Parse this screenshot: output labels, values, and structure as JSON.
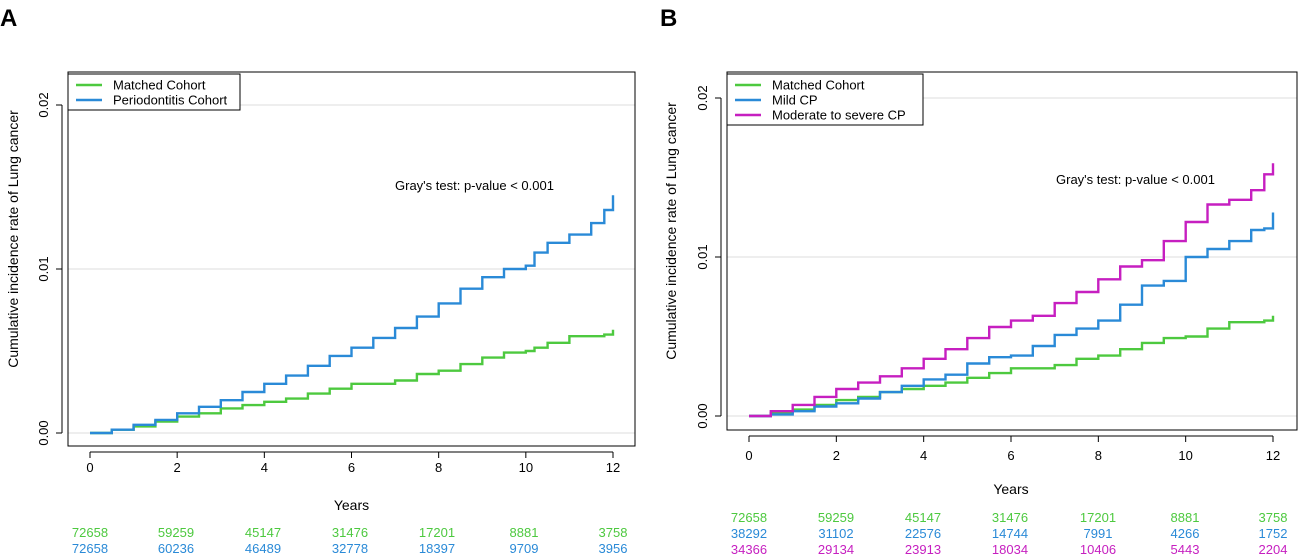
{
  "chart_data": [
    {
      "panel_label": "A",
      "type": "line",
      "title": "",
      "xlabel": "Years",
      "ylabel": "Cumulative incidence rate of Lung cancer",
      "xlim": [
        0,
        12
      ],
      "ylim": [
        0,
        0.02
      ],
      "x_ticks": [
        0,
        2,
        4,
        6,
        8,
        10,
        12
      ],
      "y_ticks": [
        "0.00",
        "0.01",
        "0.02"
      ],
      "y_tick_values": [
        0,
        0.01,
        0.02
      ],
      "grid": "horizontal",
      "legend_position": "top-left",
      "annotation": "Gray's test: p-value < 0.001",
      "x": [
        0,
        0.5,
        1,
        1.5,
        2,
        2.5,
        3,
        3.5,
        4,
        4.5,
        5,
        5.5,
        6,
        6.5,
        7,
        7.5,
        8,
        8.5,
        9,
        9.5,
        10,
        10.2,
        10.5,
        11,
        11.5,
        11.8,
        12
      ],
      "series": [
        {
          "name": "Matched Cohort",
          "color": "#4dc93f",
          "values": [
            0,
            0.0002,
            0.0004,
            0.0007,
            0.001,
            0.0012,
            0.0015,
            0.0017,
            0.0019,
            0.0021,
            0.0024,
            0.0027,
            0.003,
            0.003,
            0.0032,
            0.0036,
            0.0038,
            0.0042,
            0.0046,
            0.0049,
            0.005,
            0.0052,
            0.0055,
            0.0059,
            0.0059,
            0.006,
            0.0063
          ]
        },
        {
          "name": "Periodontitis Cohort",
          "color": "#2a8ad7",
          "values": [
            0,
            0.0002,
            0.0005,
            0.0008,
            0.0012,
            0.0016,
            0.002,
            0.0025,
            0.003,
            0.0035,
            0.0041,
            0.0047,
            0.0052,
            0.0058,
            0.0064,
            0.0071,
            0.0079,
            0.0088,
            0.0095,
            0.01,
            0.0102,
            0.011,
            0.0116,
            0.0121,
            0.0128,
            0.0136,
            0.0145
          ]
        }
      ],
      "risk_table": [
        {
          "name": "Matched Cohort",
          "color": "#4dc93f",
          "counts": [
            "72658",
            "59259",
            "45147",
            "31476",
            "17201",
            "8881",
            "3758"
          ]
        },
        {
          "name": "Periodontitis Cohort",
          "color": "#2a8ad7",
          "counts": [
            "72658",
            "60236",
            "46489",
            "32778",
            "18397",
            "9709",
            "3956"
          ]
        }
      ]
    },
    {
      "panel_label": "B",
      "type": "line",
      "title": "",
      "xlabel": "Years",
      "ylabel": "Cumulative incidence rate of Lung cancer",
      "xlim": [
        0,
        12
      ],
      "ylim": [
        0,
        0.02
      ],
      "x_ticks": [
        0,
        2,
        4,
        6,
        8,
        10,
        12
      ],
      "y_ticks": [
        "0.00",
        "0.01",
        "0.02"
      ],
      "y_tick_values": [
        0,
        0.01,
        0.02
      ],
      "grid": "horizontal",
      "legend_position": "top-left",
      "annotation": "Gray's test: p-value < 0.001",
      "x": [
        0,
        0.5,
        1,
        1.5,
        2,
        2.5,
        3,
        3.5,
        4,
        4.5,
        5,
        5.5,
        6,
        6.5,
        7,
        7.5,
        8,
        8.5,
        9,
        9.5,
        10,
        10.5,
        11,
        11.5,
        11.8,
        12
      ],
      "series": [
        {
          "name": "Matched Cohort",
          "color": "#4dc93f",
          "values": [
            0,
            0.0002,
            0.0004,
            0.0007,
            0.001,
            0.0012,
            0.0015,
            0.0017,
            0.0019,
            0.0021,
            0.0024,
            0.0027,
            0.003,
            0.003,
            0.0032,
            0.0036,
            0.0038,
            0.0042,
            0.0046,
            0.0049,
            0.005,
            0.0055,
            0.0059,
            0.0059,
            0.006,
            0.0063
          ]
        },
        {
          "name": "Mild CP",
          "color": "#2a8ad7",
          "values": [
            0,
            0.0001,
            0.0003,
            0.0006,
            0.0008,
            0.0011,
            0.0015,
            0.0019,
            0.0023,
            0.0026,
            0.0033,
            0.0037,
            0.0038,
            0.0044,
            0.0051,
            0.0055,
            0.006,
            0.007,
            0.0082,
            0.0085,
            0.01,
            0.0105,
            0.011,
            0.0117,
            0.0118,
            0.0128
          ]
        },
        {
          "name": "Moderate to severe CP",
          "color": "#c61fc0",
          "values": [
            0,
            0.0003,
            0.0007,
            0.0012,
            0.0017,
            0.0021,
            0.0025,
            0.003,
            0.0036,
            0.0042,
            0.0049,
            0.0056,
            0.006,
            0.0063,
            0.0071,
            0.0078,
            0.0086,
            0.0094,
            0.0098,
            0.011,
            0.0122,
            0.0133,
            0.0136,
            0.0142,
            0.0152,
            0.0159
          ]
        }
      ],
      "risk_table": [
        {
          "name": "Matched Cohort",
          "color": "#4dc93f",
          "counts": [
            "72658",
            "59259",
            "45147",
            "31476",
            "17201",
            "8881",
            "3758"
          ]
        },
        {
          "name": "Mild CP",
          "color": "#2a8ad7",
          "counts": [
            "38292",
            "31102",
            "22576",
            "14744",
            "7991",
            "4266",
            "1752"
          ]
        },
        {
          "name": "Moderate to severe CP",
          "color": "#c61fc0",
          "counts": [
            "34366",
            "29134",
            "23913",
            "18034",
            "10406",
            "5443",
            "2204"
          ]
        }
      ]
    }
  ]
}
